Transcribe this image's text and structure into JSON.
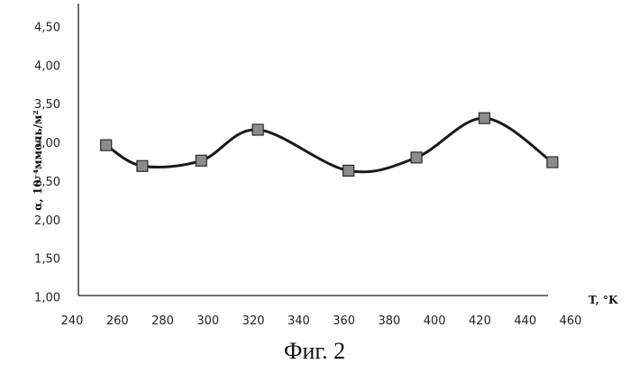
{
  "chart_data": {
    "type": "line",
    "title": "",
    "ylabel": "α, 10⁻⁴ммоль/м²",
    "xlabel": "T, °K",
    "caption": "Фиг. 2",
    "xlim": [
      240,
      460
    ],
    "ylim": [
      1.0,
      4.5
    ],
    "x_ticks": [
      240,
      260,
      280,
      300,
      320,
      340,
      360,
      380,
      400,
      420,
      440,
      460
    ],
    "y_ticks": [
      "1,00",
      "1,50",
      "2,00",
      "2,50",
      "3,00",
      "3,50",
      "4,00",
      "4,50"
    ],
    "grid": false,
    "smooth": true,
    "series": [
      {
        "marker": "square",
        "x": [
          255,
          271,
          297,
          322,
          362,
          392,
          422,
          452
        ],
        "y": [
          2.97,
          2.7,
          2.77,
          3.17,
          2.64,
          2.81,
          3.32,
          2.75
        ]
      }
    ]
  }
}
